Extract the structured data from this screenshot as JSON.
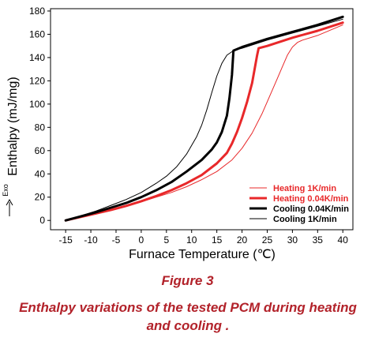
{
  "figure": {
    "label": "Figure 3",
    "caption": "Enthalpy variations of the tested PCM during heating and cooling ."
  },
  "chart_data": {
    "type": "line",
    "xlabel": "Furnace Temperature (℃)",
    "ylabel": "Enthalpy (mJ/mg)",
    "exo_label": "Exo",
    "xlim": [
      -18,
      42
    ],
    "ylim": [
      -8,
      182
    ],
    "xticks": [
      -15,
      -10,
      -5,
      0,
      5,
      10,
      15,
      20,
      25,
      30,
      35,
      40
    ],
    "yticks": [
      0,
      20,
      40,
      60,
      80,
      100,
      120,
      140,
      160,
      180
    ],
    "grid": false,
    "legend_position": "bottom-right",
    "series": [
      {
        "name": "Heating 1K/min",
        "color": "#e8282a",
        "width": 1,
        "x": [
          -15,
          -12,
          -9,
          -6,
          -3,
          0,
          3,
          6,
          9,
          12,
          15,
          18,
          20,
          22,
          24,
          25,
          26,
          27,
          28,
          29,
          30,
          31,
          32,
          35,
          40
        ],
        "y": [
          0,
          3,
          6,
          9,
          12,
          16,
          20,
          24,
          29,
          35,
          42,
          52,
          62,
          75,
          92,
          102,
          112,
          122,
          132,
          142,
          149,
          153,
          155,
          159,
          168
        ]
      },
      {
        "name": "Heating 0.04K/min",
        "color": "#e8282a",
        "width": 3,
        "x": [
          -15,
          -12,
          -9,
          -6,
          -3,
          0,
          3,
          6,
          9,
          12,
          15,
          17,
          18,
          19,
          20,
          21,
          22,
          22.5,
          23,
          23.3,
          25,
          30,
          35,
          40
        ],
        "y": [
          0,
          3,
          6,
          9,
          12.5,
          16.5,
          21,
          26,
          32,
          39,
          49,
          58,
          66,
          76,
          88,
          102,
          118,
          130,
          142,
          148,
          150,
          157,
          163,
          170
        ]
      },
      {
        "name": "Cooling 0.04K/min",
        "color": "#000000",
        "width": 3,
        "x": [
          -15,
          -12,
          -9,
          -6,
          -3,
          0,
          3,
          6,
          9,
          12,
          14,
          15,
          16,
          17,
          17.5,
          18,
          18.3,
          20,
          25,
          30,
          35,
          40
        ],
        "y": [
          0,
          3.5,
          7,
          11,
          15,
          20,
          26,
          33,
          42,
          52,
          61,
          67,
          76,
          90,
          105,
          125,
          146,
          149,
          156,
          162,
          168,
          175
        ]
      },
      {
        "name": "Cooling 1K/min",
        "color": "#000000",
        "width": 1,
        "x": [
          -15,
          -12,
          -9,
          -6,
          -3,
          0,
          3,
          5,
          7,
          9,
          11,
          12,
          13,
          14,
          15,
          16,
          17,
          18,
          19,
          20,
          25,
          30,
          35,
          40
        ],
        "y": [
          0,
          4,
          8,
          13,
          18,
          24,
          32,
          38,
          46,
          57,
          72,
          82,
          95,
          110,
          124,
          135,
          142,
          145,
          147,
          148,
          155,
          161,
          167,
          173
        ]
      }
    ]
  }
}
